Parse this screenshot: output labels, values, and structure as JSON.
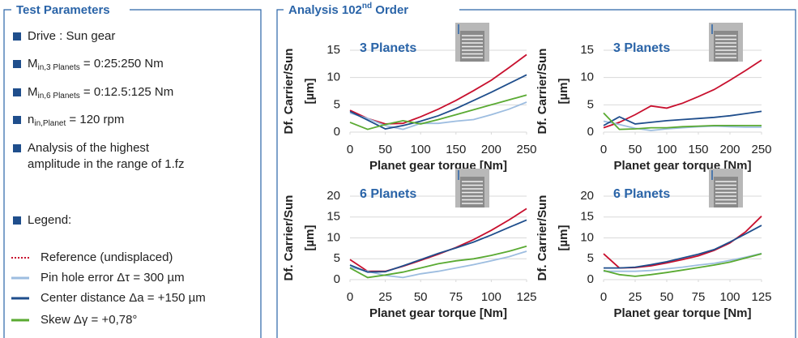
{
  "test_parameters": {
    "title": "Test Parameters",
    "items": [
      {
        "text": "Drive : Sun gear"
      },
      {
        "text": "M",
        "sub": "in,3 Planets",
        "rest": " = 0:25:250 Nm"
      },
      {
        "text": "M",
        "sub": "in,6 Planets",
        "rest": " = 0:12.5:125 Nm"
      },
      {
        "text": "n",
        "sub": "in,Planet",
        "rest": " = 120 rpm"
      },
      {
        "text": "Analysis of the highest",
        "line2": "amplitude in the range of 1.fz"
      }
    ],
    "legend": {
      "title": "Legend:",
      "entries": [
        {
          "name": "Reference (undisplaced)",
          "color": "#c8102e",
          "dash": "dotted"
        },
        {
          "name": "Pin hole error Δτ = 300 µm",
          "color": "#9dbde0",
          "dash": "solid"
        },
        {
          "name": "Center distance Δa = +150 µm",
          "color": "#1f4e8c",
          "dash": "solid"
        },
        {
          "name": "Skew Δγ = +0,78°",
          "color": "#5aaa32",
          "dash": "solid"
        }
      ]
    }
  },
  "analysis": {
    "title": "Analysis 102",
    "sup": "nd",
    "rest": " Order"
  },
  "chart_data": [
    {
      "type": "line",
      "title": "3 Planets",
      "ylabel": [
        "Df. Carrier/Sun",
        "[µm]"
      ],
      "xlabel": "Planet gear torque [Nm]",
      "x": [
        0,
        25,
        50,
        75,
        100,
        125,
        150,
        175,
        200,
        225,
        250
      ],
      "xlim": [
        0,
        250
      ],
      "xticks": [
        0,
        50,
        100,
        150,
        200,
        250
      ],
      "ylim": [
        0,
        15
      ],
      "yticks": [
        0,
        5,
        10,
        15
      ],
      "grid": true,
      "series": [
        {
          "color": "#c8102e",
          "values": [
            4,
            2.5,
            1.5,
            1.6,
            2.8,
            4.2,
            5.8,
            7.6,
            9.5,
            11.8,
            14.2
          ]
        },
        {
          "color": "#9dbde0",
          "values": [
            3.5,
            2.5,
            1.2,
            0.5,
            1.6,
            1.6,
            2,
            2.3,
            3.2,
            4.2,
            5.5
          ]
        },
        {
          "color": "#1f4e8c",
          "values": [
            3.8,
            2.2,
            0.6,
            1.2,
            2,
            3,
            4.3,
            5.8,
            7.3,
            8.9,
            10.5
          ]
        },
        {
          "color": "#5aaa32",
          "values": [
            1.8,
            0.5,
            1.4,
            2.1,
            1.5,
            2.3,
            3.2,
            4.1,
            5,
            5.9,
            6.8
          ]
        }
      ]
    },
    {
      "type": "line",
      "title": "3 Planets",
      "ylabel": [
        "Df. Carrier/Sun",
        "[µm]"
      ],
      "xlabel": "Planet gear torque [Nm]",
      "x": [
        0,
        25,
        50,
        75,
        100,
        125,
        150,
        175,
        200,
        225,
        250
      ],
      "xlim": [
        0,
        250
      ],
      "xticks": [
        0,
        50,
        100,
        150,
        200,
        250
      ],
      "ylim": [
        0,
        15
      ],
      "yticks": [
        0,
        5,
        10,
        15
      ],
      "grid": true,
      "series": [
        {
          "color": "#c8102e",
          "values": [
            0.8,
            1.8,
            3.2,
            4.8,
            4.4,
            5.3,
            6.5,
            7.8,
            9.5,
            11.3,
            13.2
          ]
        },
        {
          "color": "#9dbde0",
          "values": [
            2,
            1.4,
            0.7,
            0.3,
            0.6,
            0.8,
            1,
            1.1,
            1,
            0.9,
            0.9
          ]
        },
        {
          "color": "#1f4e8c",
          "values": [
            1.2,
            2.8,
            1.5,
            1.8,
            2.1,
            2.3,
            2.5,
            2.7,
            3,
            3.4,
            3.8
          ]
        },
        {
          "color": "#5aaa32",
          "values": [
            3.5,
            0.5,
            0.6,
            0.8,
            0.8,
            1,
            1.1,
            1.2,
            1.2,
            1.2,
            1.2
          ]
        }
      ]
    },
    {
      "type": "line",
      "title": "6 Planets",
      "ylabel": [
        "Df. Carrier/Sun",
        "[µm]"
      ],
      "xlabel": "Planet gear torque [Nm]",
      "x": [
        0,
        12.5,
        25,
        37.5,
        50,
        62.5,
        75,
        87.5,
        100,
        112.5,
        125
      ],
      "xlim": [
        0,
        125
      ],
      "xticks": [
        0,
        25,
        50,
        75,
        100,
        125
      ],
      "ylim": [
        0,
        20
      ],
      "yticks": [
        0,
        5,
        10,
        15,
        20
      ],
      "grid": true,
      "series": [
        {
          "color": "#c8102e",
          "values": [
            4.8,
            2,
            2,
            3.2,
            4.6,
            6.1,
            7.7,
            9.6,
            11.8,
            14.3,
            17
          ]
        },
        {
          "color": "#9dbde0",
          "values": [
            3,
            2,
            1,
            0.5,
            1.4,
            2,
            2.8,
            3.6,
            4.5,
            5.5,
            6.8
          ]
        },
        {
          "color": "#1f4e8c",
          "values": [
            3.5,
            1.8,
            1.9,
            3.3,
            4.8,
            6.3,
            7.6,
            9,
            10.7,
            12.5,
            14.3
          ]
        },
        {
          "color": "#5aaa32",
          "values": [
            2.8,
            0.5,
            1.1,
            1.8,
            2.8,
            3.8,
            4.5,
            5,
            5.8,
            6.8,
            8
          ]
        }
      ]
    },
    {
      "type": "line",
      "title": "6 Planets",
      "ylabel": [
        "Df. Carrier/Sun",
        "[µm]"
      ],
      "xlabel": "Planet gear torque [Nm]",
      "x": [
        0,
        12.5,
        25,
        37.5,
        50,
        62.5,
        75,
        87.5,
        100,
        112.5,
        125
      ],
      "xlim": [
        0,
        125
      ],
      "xticks": [
        0,
        25,
        50,
        75,
        100,
        125
      ],
      "ylim": [
        0,
        20
      ],
      "yticks": [
        0,
        5,
        10,
        15,
        20
      ],
      "grid": true,
      "series": [
        {
          "color": "#c8102e",
          "values": [
            6.2,
            2.8,
            2.9,
            3.3,
            4,
            4.8,
            5.7,
            7,
            8.8,
            11.5,
            15.2
          ]
        },
        {
          "color": "#9dbde0",
          "values": [
            2,
            2,
            2,
            2.2,
            2.6,
            3,
            3.5,
            3.9,
            4.6,
            5.4,
            6.3
          ]
        },
        {
          "color": "#1f4e8c",
          "values": [
            2.8,
            2.8,
            3,
            3.6,
            4.3,
            5.2,
            6.1,
            7.2,
            9,
            11,
            13
          ]
        },
        {
          "color": "#5aaa32",
          "values": [
            2.2,
            1.2,
            0.8,
            1.2,
            1.7,
            2.3,
            2.9,
            3.5,
            4.2,
            5.2,
            6.2
          ]
        }
      ]
    }
  ]
}
